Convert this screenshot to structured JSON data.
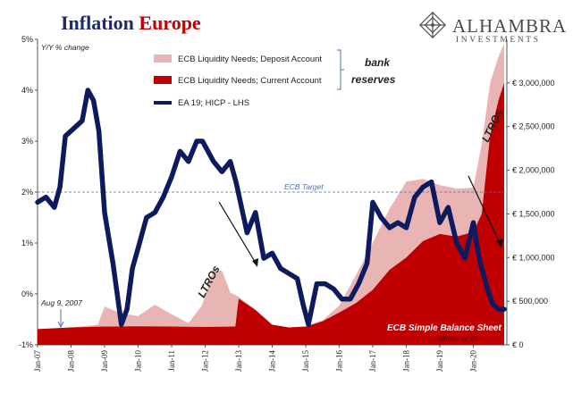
{
  "header": {
    "title_part1": "Inflation",
    "title_part2": "Europe",
    "logo_name": "ALHAMBRA",
    "logo_sub": "INVESTMENTS"
  },
  "chart_data": {
    "type": "line",
    "left_axis": {
      "label": "Y/Y % change",
      "ticks": [
        "5%",
        "4%",
        "3%",
        "2%",
        "1%",
        "0%",
        "-1%"
      ],
      "range": [
        -1,
        5
      ]
    },
    "right_axis": {
      "ticks": [
        "€ 3,000,000",
        "€ 2,500,000",
        "€ 2,000,000",
        "€ 1,500,000",
        "€ 1,000,000",
        "€ 500,000",
        "€ 0"
      ],
      "range": [
        0,
        3500000
      ],
      "unit_note": "millions of €s"
    },
    "x_labels": [
      "Jan-07",
      "Jan-08",
      "Jan-09",
      "Jan-10",
      "Jan-11",
      "Jan-12",
      "Jan-13",
      "Jan-14",
      "Jan-15",
      "Jan-16",
      "Jan-17",
      "Jan-18",
      "Jan-19",
      "Jan-20"
    ],
    "x_range": [
      2007.0,
      2021.0
    ],
    "legend": [
      {
        "label": "ECB Liquidity Needs; Deposit Account",
        "color": "#e8b4b4",
        "kind": "area"
      },
      {
        "label": "ECB Liquidity Needs; Current Account",
        "color": "#c00000",
        "kind": "area"
      },
      {
        "label": "EA 19; HICP - LHS",
        "color": "#0d1b5e",
        "kind": "line"
      }
    ],
    "legend_bracket_label": "bank reserves",
    "reference_line": {
      "value": 2.0,
      "label": "ECB Target"
    },
    "annotations": {
      "aug": "Aug 9, 2007",
      "ltro1": "LTROs",
      "ltro2": "LTROs",
      "balance": "ECB Simple Balance Sheet"
    },
    "series": [
      {
        "name": "EA 19; HICP - LHS",
        "axis": "left",
        "points": [
          [
            2007.0,
            1.8
          ],
          [
            2007.25,
            1.9
          ],
          [
            2007.5,
            1.7
          ],
          [
            2007.67,
            2.1
          ],
          [
            2007.83,
            3.1
          ],
          [
            2008.0,
            3.2
          ],
          [
            2008.33,
            3.4
          ],
          [
            2008.5,
            4.0
          ],
          [
            2008.67,
            3.8
          ],
          [
            2008.83,
            3.2
          ],
          [
            2009.0,
            1.6
          ],
          [
            2009.25,
            0.6
          ],
          [
            2009.5,
            -0.6
          ],
          [
            2009.67,
            -0.3
          ],
          [
            2009.83,
            0.5
          ],
          [
            2010.0,
            0.9
          ],
          [
            2010.25,
            1.5
          ],
          [
            2010.5,
            1.6
          ],
          [
            2010.75,
            1.9
          ],
          [
            2011.0,
            2.3
          ],
          [
            2011.25,
            2.8
          ],
          [
            2011.5,
            2.6
          ],
          [
            2011.75,
            3.0
          ],
          [
            2011.92,
            3.0
          ],
          [
            2012.25,
            2.6
          ],
          [
            2012.5,
            2.4
          ],
          [
            2012.75,
            2.6
          ],
          [
            2012.92,
            2.2
          ],
          [
            2013.25,
            1.2
          ],
          [
            2013.5,
            1.6
          ],
          [
            2013.75,
            0.7
          ],
          [
            2014.0,
            0.8
          ],
          [
            2014.25,
            0.5
          ],
          [
            2014.5,
            0.4
          ],
          [
            2014.75,
            0.3
          ],
          [
            2014.92,
            -0.2
          ],
          [
            2015.08,
            -0.6
          ],
          [
            2015.33,
            0.2
          ],
          [
            2015.58,
            0.2
          ],
          [
            2015.83,
            0.1
          ],
          [
            2016.08,
            -0.1
          ],
          [
            2016.33,
            -0.1
          ],
          [
            2016.58,
            0.2
          ],
          [
            2016.83,
            0.6
          ],
          [
            2017.0,
            1.8
          ],
          [
            2017.25,
            1.5
          ],
          [
            2017.5,
            1.3
          ],
          [
            2017.75,
            1.4
          ],
          [
            2018.0,
            1.3
          ],
          [
            2018.25,
            1.9
          ],
          [
            2018.5,
            2.1
          ],
          [
            2018.75,
            2.2
          ],
          [
            2019.0,
            1.4
          ],
          [
            2019.25,
            1.7
          ],
          [
            2019.5,
            1.0
          ],
          [
            2019.75,
            0.7
          ],
          [
            2020.0,
            1.4
          ],
          [
            2020.17,
            0.7
          ],
          [
            2020.42,
            0.1
          ],
          [
            2020.58,
            -0.2
          ],
          [
            2020.75,
            -0.3
          ],
          [
            2020.92,
            -0.3
          ]
        ]
      },
      {
        "name": "ECB Liquidity Needs; Current Account",
        "axis": "right",
        "points": [
          [
            2007.0,
            180000
          ],
          [
            2008.0,
            200000
          ],
          [
            2009.0,
            210000
          ],
          [
            2010.0,
            212000
          ],
          [
            2011.0,
            210000
          ],
          [
            2012.0,
            205000
          ],
          [
            2012.9,
            210000
          ],
          [
            2013.0,
            530000
          ],
          [
            2013.5,
            400000
          ],
          [
            2014.0,
            230000
          ],
          [
            2014.5,
            200000
          ],
          [
            2015.0,
            210000
          ],
          [
            2015.5,
            270000
          ],
          [
            2016.0,
            370000
          ],
          [
            2016.5,
            480000
          ],
          [
            2017.0,
            630000
          ],
          [
            2017.5,
            860000
          ],
          [
            2018.0,
            1000000
          ],
          [
            2018.5,
            1190000
          ],
          [
            2019.0,
            1270000
          ],
          [
            2019.5,
            1240000
          ],
          [
            2020.0,
            1290000
          ],
          [
            2020.25,
            1500000
          ],
          [
            2020.5,
            2400000
          ],
          [
            2020.75,
            2800000
          ],
          [
            2020.92,
            3000000
          ]
        ]
      },
      {
        "name": "ECB Liquidity Needs; Deposit Account",
        "axis": "right",
        "points": [
          [
            2007.0,
            180000
          ],
          [
            2008.0,
            200000
          ],
          [
            2008.8,
            230000
          ],
          [
            2009.0,
            440000
          ],
          [
            2009.5,
            360000
          ],
          [
            2010.0,
            330000
          ],
          [
            2010.5,
            460000
          ],
          [
            2011.0,
            350000
          ],
          [
            2011.5,
            250000
          ],
          [
            2011.9,
            450000
          ],
          [
            2012.25,
            860000
          ],
          [
            2012.5,
            850000
          ],
          [
            2012.75,
            600000
          ],
          [
            2013.0,
            550000
          ],
          [
            2013.5,
            400000
          ],
          [
            2014.0,
            230000
          ],
          [
            2014.5,
            200000
          ],
          [
            2015.0,
            210000
          ],
          [
            2015.5,
            280000
          ],
          [
            2016.0,
            450000
          ],
          [
            2016.5,
            800000
          ],
          [
            2017.0,
            1170000
          ],
          [
            2017.5,
            1560000
          ],
          [
            2018.0,
            1870000
          ],
          [
            2018.5,
            1900000
          ],
          [
            2019.0,
            1830000
          ],
          [
            2019.5,
            1790000
          ],
          [
            2020.0,
            1800000
          ],
          [
            2020.25,
            2300000
          ],
          [
            2020.5,
            3000000
          ],
          [
            2020.75,
            3300000
          ],
          [
            2020.92,
            3450000
          ]
        ]
      }
    ]
  }
}
